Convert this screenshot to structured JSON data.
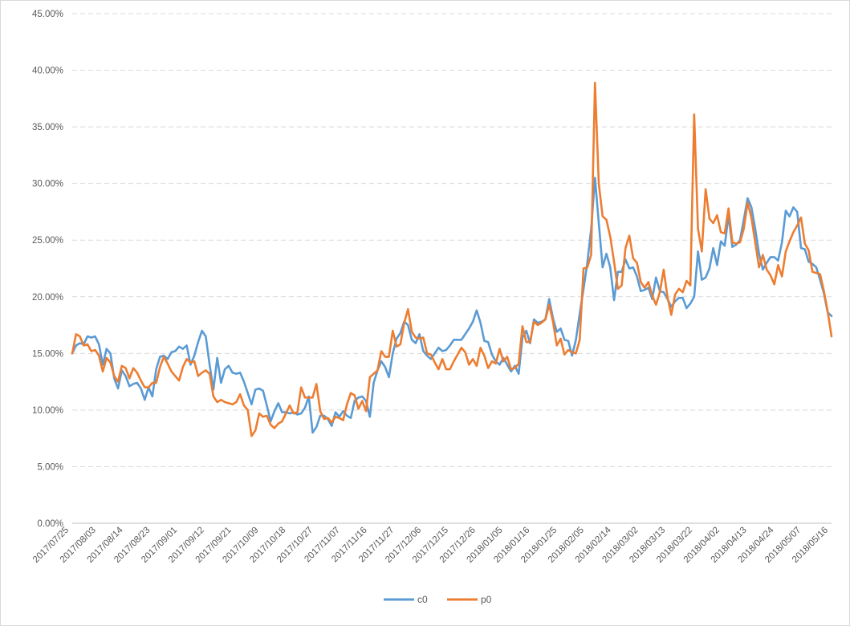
{
  "chart_data": {
    "type": "line",
    "title": "",
    "xlabel": "",
    "ylabel": "",
    "ylim": [
      0,
      0.45
    ],
    "y_ticks": [
      "0.00%",
      "5.00%",
      "10.00%",
      "15.00%",
      "20.00%",
      "25.00%",
      "30.00%",
      "35.00%",
      "40.00%",
      "45.00%"
    ],
    "y_tick_values": [
      0,
      0.05,
      0.1,
      0.15,
      0.2,
      0.25,
      0.3,
      0.35,
      0.4,
      0.45
    ],
    "x_tick_labels": [
      "2017/07/25",
      "2017/08/03",
      "2017/08/14",
      "2017/08/23",
      "2017/09/01",
      "2017/09/12",
      "2017/09/21",
      "2017/10/09",
      "2017/10/18",
      "2017/10/27",
      "2017/11/07",
      "2017/11/16",
      "2017/11/27",
      "2017/12/06",
      "2017/12/15",
      "2017/12/26",
      "2018/01/05",
      "2018/01/16",
      "2018/01/25",
      "2018/02/05",
      "2018/02/14",
      "2018/03/02",
      "2018/03/13",
      "2018/03/22",
      "2018/04/02",
      "2018/04/13",
      "2018/04/24",
      "2018/05/07",
      "2018/05/16"
    ],
    "grid": true,
    "legend_position": "bottom",
    "colors": {
      "c0": "#5b9bd5",
      "p0": "#ed7d31",
      "grid": "#d9d9d9",
      "text": "#595959"
    },
    "series": [
      {
        "name": "c0",
        "values": [
          0.15,
          0.157,
          0.159,
          0.158,
          0.165,
          0.164,
          0.165,
          0.158,
          0.14,
          0.154,
          0.15,
          0.128,
          0.119,
          0.135,
          0.13,
          0.121,
          0.123,
          0.124,
          0.119,
          0.109,
          0.12,
          0.112,
          0.136,
          0.147,
          0.148,
          0.145,
          0.151,
          0.152,
          0.156,
          0.154,
          0.157,
          0.14,
          0.148,
          0.16,
          0.17,
          0.165,
          0.14,
          0.118,
          0.146,
          0.124,
          0.136,
          0.139,
          0.133,
          0.132,
          0.133,
          0.125,
          0.115,
          0.105,
          0.118,
          0.119,
          0.117,
          0.104,
          0.09,
          0.099,
          0.106,
          0.098,
          0.098,
          0.097,
          0.098,
          0.096,
          0.097,
          0.102,
          0.112,
          0.08,
          0.085,
          0.095,
          0.095,
          0.092,
          0.086,
          0.098,
          0.094,
          0.099,
          0.095,
          0.093,
          0.108,
          0.111,
          0.112,
          0.108,
          0.094,
          0.124,
          0.135,
          0.143,
          0.138,
          0.129,
          0.15,
          0.163,
          0.168,
          0.178,
          0.175,
          0.162,
          0.159,
          0.167,
          0.152,
          0.148,
          0.145,
          0.15,
          0.155,
          0.152,
          0.153,
          0.157,
          0.162,
          0.162,
          0.162,
          0.167,
          0.172,
          0.178,
          0.188,
          0.177,
          0.161,
          0.16,
          0.149,
          0.143,
          0.14,
          0.146,
          0.14,
          0.134,
          0.139,
          0.132,
          0.164,
          0.17,
          0.159,
          0.18,
          0.177,
          0.178,
          0.18,
          0.198,
          0.181,
          0.169,
          0.172,
          0.162,
          0.161,
          0.148,
          0.162,
          0.185,
          0.207,
          0.23,
          0.26,
          0.305,
          0.265,
          0.226,
          0.238,
          0.226,
          0.197,
          0.222,
          0.222,
          0.233,
          0.225,
          0.226,
          0.218,
          0.205,
          0.206,
          0.208,
          0.198,
          0.217,
          0.205,
          0.204,
          0.198,
          0.191,
          0.196,
          0.199,
          0.199,
          0.19,
          0.194,
          0.2,
          0.24,
          0.215,
          0.217,
          0.225,
          0.243,
          0.228,
          0.249,
          0.245,
          0.272,
          0.244,
          0.246,
          0.25,
          0.268,
          0.287,
          0.279,
          0.26,
          0.238,
          0.224,
          0.23,
          0.235,
          0.235,
          0.232,
          0.248,
          0.276,
          0.271,
          0.279,
          0.275,
          0.243,
          0.242,
          0.231,
          0.229,
          0.226,
          0.215,
          0.203,
          0.186,
          0.183
        ]
      },
      {
        "name": "p0",
        "values": [
          0.15,
          0.167,
          0.165,
          0.157,
          0.158,
          0.152,
          0.153,
          0.148,
          0.134,
          0.146,
          0.142,
          0.13,
          0.125,
          0.139,
          0.137,
          0.128,
          0.137,
          0.133,
          0.126,
          0.12,
          0.12,
          0.124,
          0.124,
          0.138,
          0.147,
          0.141,
          0.134,
          0.13,
          0.126,
          0.138,
          0.145,
          0.142,
          0.143,
          0.13,
          0.133,
          0.135,
          0.132,
          0.112,
          0.107,
          0.109,
          0.107,
          0.106,
          0.105,
          0.107,
          0.114,
          0.104,
          0.1,
          0.077,
          0.082,
          0.097,
          0.094,
          0.095,
          0.087,
          0.084,
          0.088,
          0.09,
          0.097,
          0.104,
          0.097,
          0.098,
          0.12,
          0.111,
          0.111,
          0.111,
          0.123,
          0.099,
          0.092,
          0.093,
          0.089,
          0.094,
          0.093,
          0.091,
          0.105,
          0.115,
          0.113,
          0.101,
          0.108,
          0.099,
          0.129,
          0.132,
          0.135,
          0.152,
          0.147,
          0.147,
          0.17,
          0.156,
          0.158,
          0.177,
          0.189,
          0.169,
          0.164,
          0.163,
          0.164,
          0.15,
          0.149,
          0.142,
          0.136,
          0.145,
          0.136,
          0.136,
          0.143,
          0.149,
          0.155,
          0.151,
          0.14,
          0.145,
          0.139,
          0.155,
          0.148,
          0.137,
          0.143,
          0.141,
          0.154,
          0.143,
          0.147,
          0.136,
          0.137,
          0.141,
          0.174,
          0.16,
          0.16,
          0.178,
          0.175,
          0.177,
          0.18,
          0.193,
          0.178,
          0.157,
          0.163,
          0.149,
          0.153,
          0.151,
          0.15,
          0.162,
          0.225,
          0.226,
          0.237,
          0.389,
          0.3,
          0.271,
          0.268,
          0.253,
          0.231,
          0.207,
          0.21,
          0.243,
          0.254,
          0.234,
          0.23,
          0.213,
          0.208,
          0.213,
          0.201,
          0.193,
          0.204,
          0.224,
          0.2,
          0.184,
          0.202,
          0.207,
          0.204,
          0.214,
          0.21,
          0.361,
          0.26,
          0.24,
          0.295,
          0.269,
          0.265,
          0.272,
          0.257,
          0.256,
          0.278,
          0.248,
          0.247,
          0.248,
          0.26,
          0.283,
          0.27,
          0.248,
          0.226,
          0.237,
          0.224,
          0.219,
          0.211,
          0.228,
          0.218,
          0.24,
          0.249,
          0.257,
          0.263,
          0.27,
          0.247,
          0.241,
          0.222,
          0.221,
          0.22,
          0.205,
          0.187,
          0.165
        ]
      }
    ]
  }
}
